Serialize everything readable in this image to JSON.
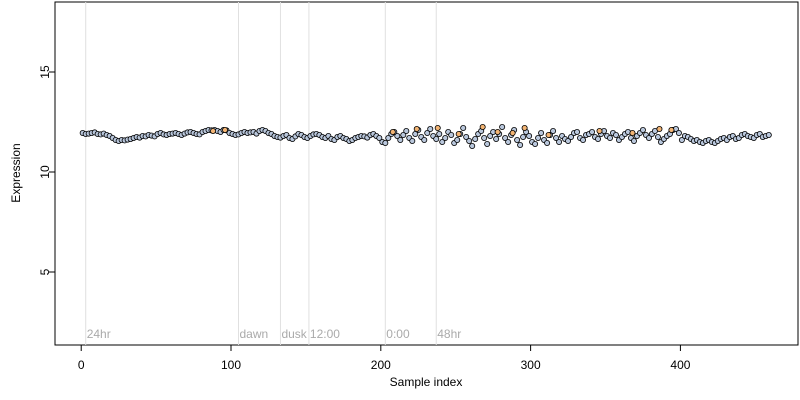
{
  "chart_data": {
    "type": "scatter",
    "xlabel": "Sample index",
    "ylabel": "Expression",
    "xlim": [
      -17.5,
      478.5
    ],
    "ylim": [
      1.35,
      18.5
    ],
    "xticks": [
      0,
      100,
      200,
      300,
      400
    ],
    "yticks": [
      5,
      10,
      15
    ],
    "annotations": [
      {
        "x": 3,
        "label": "24hr"
      },
      {
        "x": 105,
        "label": "dawn"
      },
      {
        "x": 133,
        "label": "dusk"
      },
      {
        "x": 152,
        "label": "12:00"
      },
      {
        "x": 203,
        "label": "0:00"
      },
      {
        "x": 237,
        "label": "48hr"
      }
    ],
    "series": [
      {
        "color": "#b9c7dc",
        "x": [
          1,
          3,
          5,
          7,
          9,
          11,
          13,
          15,
          17,
          19,
          21,
          23,
          25,
          27,
          29,
          31,
          33,
          35,
          37,
          39,
          41,
          43,
          45,
          47,
          49,
          51,
          53,
          55,
          57,
          59,
          61,
          63,
          65,
          67,
          69,
          71,
          73,
          75,
          77,
          79,
          81,
          83,
          85,
          87,
          89,
          91,
          93,
          95,
          97,
          99,
          101,
          103,
          105,
          107,
          109,
          111,
          113,
          115,
          117,
          119,
          121,
          123,
          125,
          127,
          129,
          131,
          133,
          135,
          137,
          139,
          141,
          143,
          145,
          147,
          149,
          151,
          153,
          155,
          157,
          159,
          161,
          163,
          165,
          167,
          169,
          171,
          173,
          175,
          177,
          179,
          181,
          183,
          185,
          187,
          189,
          191,
          193,
          195,
          197,
          199,
          201,
          203,
          205,
          207,
          209,
          211,
          213,
          215,
          217,
          219,
          221,
          223,
          225,
          227,
          229,
          231,
          233,
          235,
          237,
          239,
          241,
          243,
          245,
          247,
          249,
          251,
          253,
          255,
          257,
          259,
          261,
          263,
          265,
          267,
          269,
          271,
          273,
          275,
          277,
          279,
          281,
          283,
          285,
          287,
          289,
          291,
          293,
          295,
          297,
          299,
          301,
          303,
          305,
          307,
          309,
          311,
          313,
          315,
          317,
          319,
          321,
          323,
          325,
          327,
          329,
          331,
          333,
          335,
          337,
          339,
          341,
          343,
          345,
          347,
          349,
          351,
          353,
          355,
          357,
          359,
          361,
          363,
          365,
          367,
          369,
          371,
          373,
          375,
          377,
          379,
          381,
          383,
          385,
          387,
          389,
          391,
          393,
          395,
          397,
          399,
          401,
          403,
          405,
          407,
          409,
          411,
          413,
          415,
          417,
          419,
          421,
          423,
          425,
          427,
          429,
          431,
          433,
          435,
          437,
          439,
          441,
          443,
          445,
          447,
          449,
          451,
          453,
          455,
          457,
          459
        ],
        "values": [
          11.95,
          11.9,
          11.92,
          11.95,
          11.98,
          11.9,
          11.88,
          11.92,
          11.85,
          11.8,
          11.7,
          11.6,
          11.55,
          11.6,
          11.58,
          11.62,
          11.65,
          11.7,
          11.75,
          11.72,
          11.8,
          11.78,
          11.85,
          11.82,
          11.78,
          11.9,
          11.95,
          11.88,
          11.85,
          11.9,
          11.92,
          11.95,
          11.9,
          11.85,
          11.92,
          11.98,
          12.0,
          11.95,
          11.9,
          11.88,
          12.0,
          12.05,
          12.1,
          12.08,
          12.1,
          12.05,
          12.0,
          12.1,
          12.08,
          11.95,
          11.9,
          11.85,
          11.88,
          11.95,
          12.0,
          11.95,
          11.98,
          12.0,
          11.92,
          12.05,
          12.1,
          12.05,
          11.95,
          11.9,
          11.8,
          11.75,
          11.72,
          11.8,
          11.85,
          11.7,
          11.65,
          11.78,
          11.9,
          11.85,
          11.75,
          11.7,
          11.8,
          11.88,
          11.9,
          11.85,
          11.75,
          11.7,
          11.8,
          11.65,
          11.6,
          11.75,
          11.8,
          11.7,
          11.65,
          11.55,
          11.6,
          11.7,
          11.75,
          11.8,
          11.78,
          11.72,
          11.85,
          11.9,
          11.8,
          11.7,
          11.5,
          11.45,
          11.7,
          11.9,
          12.0,
          11.8,
          11.6,
          11.85,
          12.05,
          11.7,
          11.55,
          11.9,
          12.1,
          11.75,
          11.6,
          11.95,
          12.15,
          11.8,
          11.65,
          11.9,
          11.5,
          11.7,
          12.0,
          11.85,
          11.45,
          11.6,
          11.9,
          12.2,
          11.75,
          11.55,
          11.3,
          11.65,
          11.9,
          12.05,
          11.7,
          11.4,
          11.8,
          12.0,
          11.65,
          11.9,
          12.25,
          11.7,
          11.5,
          11.85,
          12.1,
          11.6,
          11.35,
          11.75,
          12.0,
          11.8,
          11.5,
          11.4,
          11.7,
          11.95,
          11.6,
          11.45,
          11.85,
          12.05,
          11.7,
          11.5,
          11.8,
          11.65,
          11.55,
          11.75,
          11.95,
          12.0,
          11.7,
          11.6,
          11.85,
          11.9,
          12.0,
          11.75,
          11.65,
          11.9,
          12.05,
          11.8,
          11.7,
          11.95,
          11.85,
          11.6,
          11.75,
          11.9,
          12.0,
          11.7,
          11.55,
          11.8,
          11.95,
          12.1,
          11.85,
          11.7,
          11.9,
          12.05,
          11.75,
          11.5,
          11.65,
          11.8,
          11.9,
          12.1,
          12.15,
          11.95,
          11.6,
          11.8,
          11.75,
          11.65,
          11.55,
          11.6,
          11.5,
          11.45,
          11.55,
          11.6,
          11.5,
          11.45,
          11.55,
          11.65,
          11.7,
          11.6,
          11.75,
          11.8,
          11.65,
          11.7,
          11.85,
          11.9,
          11.8,
          11.75,
          11.7,
          11.85,
          11.9,
          11.75,
          11.8,
          11.85
        ]
      },
      {
        "color": "#f2b474",
        "x": [
          88,
          96,
          208,
          224,
          238,
          252,
          268,
          278,
          288,
          296,
          312,
          346,
          368,
          386,
          394
        ],
        "values": [
          12.05,
          12.1,
          12.0,
          12.15,
          12.2,
          11.9,
          12.25,
          12.0,
          11.95,
          12.2,
          11.85,
          12.05,
          11.95,
          12.15,
          12.1
        ]
      }
    ]
  }
}
